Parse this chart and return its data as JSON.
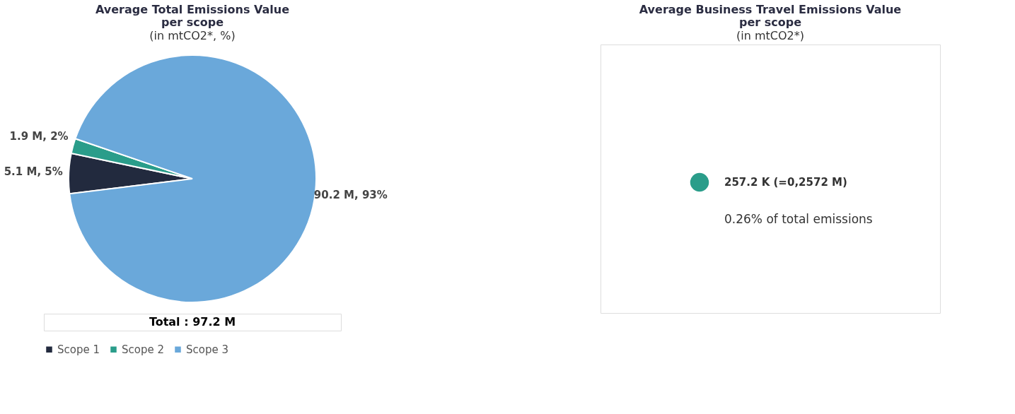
{
  "chart_data": [
    {
      "type": "pie",
      "title": "Average Total Emissions Value per scope",
      "subtitle": "(in mtCO2*, %)",
      "categories": [
        "Scope 1",
        "Scope 2",
        "Scope 3"
      ],
      "values": [
        5.1,
        1.9,
        90.2
      ],
      "colors": [
        "#222a3e",
        "#2a9d8a",
        "#6aa8da"
      ],
      "value_labels": [
        "5.1 M, 5%",
        "1.9 M, 2%",
        "90.2 M, 93%"
      ],
      "legend": "bottom",
      "annotations": [
        "Total : 97.2 M"
      ]
    },
    {
      "type": "other",
      "title": "Average Business Travel Emissions Value per scope",
      "subtitle": "(in mtCO2*)",
      "categories": [
        null
      ],
      "values": [
        257.2
      ],
      "colors": [
        "#2a9d8a"
      ],
      "value_labels": [
        "257.2 K  (=0,2572 M)"
      ],
      "annotations": [
        "0.26% of total emissions"
      ]
    }
  ]
}
